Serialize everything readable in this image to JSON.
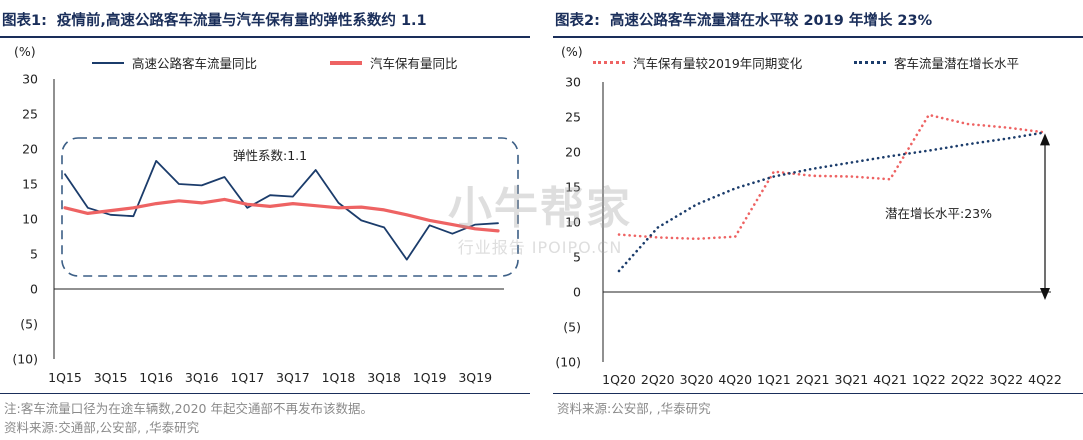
{
  "left_panel": {
    "title_label": "图表1:",
    "title_text": "疫情前,高速公路客车流量与汽车保有量的弹性系数约 1.1",
    "unit": "(%)",
    "legend": [
      "高速公路客车流量同比",
      "汽车保有量同比"
    ],
    "annotation": "弹性系数:1.1",
    "notes": [
      "注:客车流量口径为在途车辆数,2020 年起交通部不再发布该数据。",
      "资料来源:交通部,公安部,          ,华泰研究"
    ]
  },
  "right_panel": {
    "title_label": "图表2:",
    "title_text": "高速公路客车流量潜在水平较 2019 年增长 23%",
    "unit": "(%)",
    "legend": [
      "汽车保有量较2019年同期变化",
      "客车流量潜在增长水平"
    ],
    "annotation": "潜在增长水平:23%",
    "notes": [
      "资料来源:公安部,          ,华泰研究"
    ]
  },
  "watermark": {
    "main": "小牛帮家",
    "sub": "行业报告 IPOIPO.CN"
  },
  "chart_data": [
    {
      "type": "line",
      "x": [
        "1Q15",
        "2Q15",
        "3Q15",
        "4Q15",
        "1Q16",
        "2Q16",
        "3Q16",
        "4Q16",
        "1Q17",
        "2Q17",
        "3Q17",
        "4Q17",
        "1Q18",
        "2Q18",
        "3Q18",
        "4Q18",
        "1Q19",
        "2Q19",
        "3Q19",
        "4Q19"
      ],
      "x_tick_labels": [
        "1Q15",
        "3Q15",
        "1Q16",
        "3Q16",
        "1Q17",
        "3Q17",
        "1Q18",
        "3Q18",
        "1Q19",
        "3Q19"
      ],
      "ylim": [
        -10,
        30
      ],
      "y_ticks": [
        "(10)",
        "(5)",
        "0",
        "5",
        "10",
        "15",
        "20",
        "25",
        "30"
      ],
      "series": [
        {
          "name": "高速公路客车流量同比",
          "color": "#1b3c6b",
          "style": "solid",
          "values": [
            16.4,
            11.6,
            10.6,
            10.4,
            18.3,
            15.0,
            14.8,
            16.0,
            11.6,
            13.4,
            13.2,
            17.0,
            12.3,
            9.8,
            8.8,
            4.2,
            9.1,
            7.9,
            9.2,
            9.4
          ]
        },
        {
          "name": "汽车保有量同比",
          "color": "#ee6363",
          "style": "solid",
          "values": [
            11.6,
            10.8,
            11.2,
            11.6,
            12.2,
            12.6,
            12.3,
            12.8,
            12.1,
            11.8,
            12.2,
            11.9,
            11.6,
            11.7,
            11.3,
            10.6,
            9.8,
            9.2,
            8.6,
            8.3
          ]
        }
      ]
    },
    {
      "type": "line",
      "x": [
        "1Q20",
        "2Q20",
        "3Q20",
        "4Q20",
        "1Q21",
        "2Q21",
        "3Q21",
        "4Q21",
        "1Q22",
        "2Q22",
        "3Q22",
        "4Q22"
      ],
      "ylim": [
        -10,
        30
      ],
      "y_ticks": [
        "(10)",
        "(5)",
        "0",
        "5",
        "10",
        "15",
        "20",
        "25",
        "30"
      ],
      "series": [
        {
          "name": "汽车保有量较2019年同期变化",
          "color": "#ee6363",
          "style": "dotted",
          "values": [
            8.2,
            7.8,
            7.6,
            7.9,
            17.2,
            16.6,
            16.5,
            16.1,
            25.3,
            24.0,
            23.5,
            22.8
          ]
        },
        {
          "name": "客车流量潜在增长水平",
          "color": "#1b3c6b",
          "style": "dotted",
          "values": [
            3.0,
            9.2,
            12.5,
            14.8,
            16.5,
            17.6,
            18.5,
            19.4,
            20.2,
            21.1,
            21.9,
            22.8
          ]
        }
      ]
    }
  ]
}
